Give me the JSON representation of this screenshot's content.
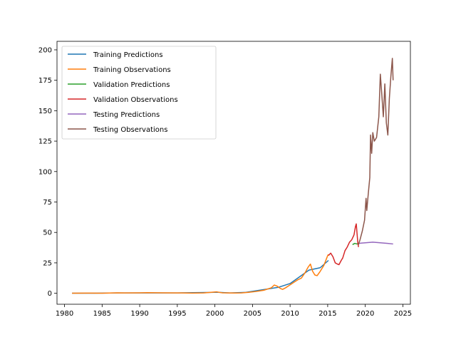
{
  "chart_data": {
    "type": "line",
    "title": "",
    "xlabel": "",
    "ylabel": "",
    "xlim": [
      1979.0,
      2026.0
    ],
    "ylim": [
      -9.0,
      207.0
    ],
    "x_ticks": [
      1980,
      1985,
      1990,
      1995,
      2000,
      2005,
      2010,
      2015,
      2020,
      2025
    ],
    "y_ticks": [
      0,
      25,
      50,
      75,
      100,
      125,
      150,
      175,
      200
    ],
    "grid": false,
    "legend_position": "upper-left",
    "series": [
      {
        "name": "Training Predictions",
        "color": "#1f77b4",
        "points": [
          [
            1981.0,
            0.1
          ],
          [
            1984.0,
            0.1
          ],
          [
            1987.0,
            0.3
          ],
          [
            1990.0,
            0.3
          ],
          [
            1995.0,
            0.3
          ],
          [
            1999.5,
            0.7
          ],
          [
            2000.2,
            0.9
          ],
          [
            2002.0,
            0.3
          ],
          [
            2004.0,
            0.7
          ],
          [
            2007.0,
            3.5
          ],
          [
            2008.5,
            5.0
          ],
          [
            2010.0,
            8.0
          ],
          [
            2012.5,
            19.0
          ],
          [
            2014.0,
            21.0
          ],
          [
            2015.1,
            27.0
          ]
        ]
      },
      {
        "name": "Training Observations",
        "color": "#ff7f0e",
        "points": [
          [
            1981.0,
            0.1
          ],
          [
            1983.0,
            0.12
          ],
          [
            1985.0,
            0.1
          ],
          [
            1987.0,
            0.35
          ],
          [
            1988.0,
            0.3
          ],
          [
            1990.0,
            0.35
          ],
          [
            1991.0,
            0.5
          ],
          [
            1993.0,
            0.4
          ],
          [
            1995.0,
            0.3
          ],
          [
            1997.0,
            0.15
          ],
          [
            1998.5,
            0.3
          ],
          [
            1999.5,
            0.8
          ],
          [
            2000.2,
            1.2
          ],
          [
            2001.0,
            0.35
          ],
          [
            2002.5,
            0.25
          ],
          [
            2003.5,
            0.3
          ],
          [
            2004.5,
            0.8
          ],
          [
            2005.5,
            1.5
          ],
          [
            2006.5,
            2.5
          ],
          [
            2007.5,
            4.5
          ],
          [
            2007.9,
            6.8
          ],
          [
            2008.3,
            5.8
          ],
          [
            2008.7,
            4.0
          ],
          [
            2009.0,
            3.2
          ],
          [
            2009.4,
            4.5
          ],
          [
            2009.9,
            6.5
          ],
          [
            2010.5,
            9.0
          ],
          [
            2011.0,
            11.0
          ],
          [
            2011.5,
            12.5
          ],
          [
            2012.0,
            17.0
          ],
          [
            2012.4,
            21.5
          ],
          [
            2012.7,
            24.0
          ],
          [
            2013.0,
            18.0
          ],
          [
            2013.3,
            15.0
          ],
          [
            2013.6,
            14.5
          ],
          [
            2014.0,
            18.0
          ],
          [
            2014.5,
            23.0
          ],
          [
            2015.0,
            31.0
          ],
          [
            2015.1,
            32.0
          ]
        ]
      },
      {
        "name": "Validation Predictions",
        "color": "#2ca02c",
        "points": [
          [
            2018.3,
            40.0
          ],
          [
            2018.6,
            41.0
          ],
          [
            2018.9,
            40.5
          ],
          [
            2019.1,
            41.0
          ]
        ]
      },
      {
        "name": "Validation Observations",
        "color": "#d62728",
        "points": [
          [
            2015.1,
            31.0
          ],
          [
            2015.4,
            33.0
          ],
          [
            2015.7,
            30.0
          ],
          [
            2016.0,
            25.0
          ],
          [
            2016.3,
            24.0
          ],
          [
            2016.5,
            23.5
          ],
          [
            2016.8,
            27.0
          ],
          [
            2017.0,
            29.0
          ],
          [
            2017.3,
            35.0
          ],
          [
            2017.6,
            38.0
          ],
          [
            2017.9,
            42.0
          ],
          [
            2018.2,
            44.0
          ],
          [
            2018.5,
            48.0
          ],
          [
            2018.7,
            55.0
          ],
          [
            2018.8,
            57.0
          ],
          [
            2019.0,
            42.0
          ],
          [
            2019.1,
            38.0
          ]
        ]
      },
      {
        "name": "Testing Predictions",
        "color": "#9467bd",
        "points": [
          [
            2019.1,
            41.0
          ],
          [
            2020.0,
            41.5
          ],
          [
            2021.0,
            42.0
          ],
          [
            2022.0,
            41.5
          ],
          [
            2023.0,
            41.0
          ],
          [
            2023.7,
            40.5
          ]
        ]
      },
      {
        "name": "Testing Observations",
        "color": "#8c564b",
        "points": [
          [
            2019.1,
            40.0
          ],
          [
            2019.3,
            44.0
          ],
          [
            2019.6,
            51.0
          ],
          [
            2019.9,
            60.0
          ],
          [
            2020.1,
            78.0
          ],
          [
            2020.2,
            68.0
          ],
          [
            2020.4,
            82.0
          ],
          [
            2020.6,
            95.0
          ],
          [
            2020.7,
            130.0
          ],
          [
            2020.85,
            115.0
          ],
          [
            2021.0,
            132.0
          ],
          [
            2021.2,
            125.0
          ],
          [
            2021.5,
            128.0
          ],
          [
            2021.8,
            145.0
          ],
          [
            2022.0,
            180.0
          ],
          [
            2022.2,
            163.0
          ],
          [
            2022.4,
            145.0
          ],
          [
            2022.6,
            172.0
          ],
          [
            2022.8,
            140.0
          ],
          [
            2023.0,
            130.0
          ],
          [
            2023.2,
            160.0
          ],
          [
            2023.4,
            178.0
          ],
          [
            2023.6,
            193.0
          ],
          [
            2023.7,
            175.0
          ]
        ]
      }
    ]
  }
}
